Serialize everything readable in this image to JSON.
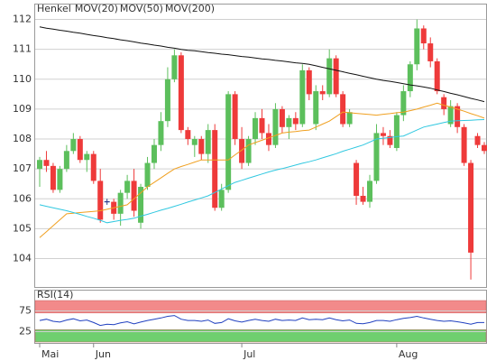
{
  "chart_data": [
    {
      "type": "candlestick",
      "name": "Henkel",
      "name_color": "#e0302a",
      "up_color": "#5cbf5c",
      "down_color": "#ee3a3a",
      "doji_color": "#2a3a8a",
      "categories": [
        "Mai",
        null,
        null,
        null,
        null,
        null,
        null,
        null,
        "Jun",
        null,
        null,
        null,
        null,
        null,
        null,
        null,
        null,
        null,
        null,
        null,
        null,
        null,
        null,
        null,
        null,
        null,
        null,
        null,
        null,
        null,
        "Jul",
        null,
        null,
        null,
        null,
        null,
        null,
        null,
        null,
        null,
        null,
        null,
        null,
        null,
        null,
        null,
        null,
        null,
        null,
        null,
        null,
        null,
        null,
        "Aug",
        null,
        null,
        null,
        null,
        null,
        null,
        null,
        null,
        null,
        null,
        null,
        null,
        null
      ],
      "open": [
        107.0,
        107.3,
        107.1,
        106.3,
        107.0,
        107.6,
        108.0,
        107.3,
        107.5,
        106.6,
        105.9,
        105.9,
        105.5,
        106.2,
        106.6,
        105.2,
        106.4,
        107.2,
        107.8,
        108.6,
        110.0,
        110.8,
        108.3,
        107.8,
        108.0,
        107.5,
        108.3,
        105.7,
        106.3,
        109.5,
        108.0,
        107.2,
        108.0,
        108.7,
        108.2,
        107.8,
        109.0,
        108.4,
        108.7,
        108.5,
        110.3,
        108.5,
        109.6,
        109.5,
        110.7,
        109.5,
        108.5,
        107.2,
        106.1,
        105.9,
        106.6,
        108.2,
        108.1,
        107.7,
        108.8,
        109.6,
        110.5,
        111.7,
        111.2,
        110.6,
        109.4,
        108.5,
        109.1,
        108.4,
        107.2,
        108.1,
        107.8
      ],
      "high": [
        107.4,
        107.6,
        107.2,
        107.1,
        107.8,
        108.2,
        108.1,
        107.6,
        107.6,
        107.0,
        106.0,
        106.0,
        106.3,
        106.8,
        107.0,
        106.5,
        107.4,
        108.0,
        108.9,
        110.4,
        111.0,
        110.9,
        108.4,
        108.1,
        108.1,
        108.5,
        108.5,
        106.5,
        109.6,
        109.6,
        108.4,
        108.1,
        108.9,
        109.0,
        108.5,
        109.2,
        109.1,
        108.8,
        108.9,
        110.5,
        110.4,
        109.8,
        109.8,
        111.0,
        110.8,
        109.6,
        109.0,
        107.3,
        106.4,
        106.8,
        108.5,
        108.4,
        108.3,
        108.9,
        109.8,
        110.6,
        112.0,
        111.8,
        111.4,
        110.7,
        109.5,
        109.3,
        109.2,
        108.5,
        107.3,
        108.2,
        107.9
      ],
      "low": [
        106.4,
        106.9,
        106.2,
        106.2,
        106.9,
        107.5,
        107.2,
        106.9,
        106.5,
        105.2,
        105.8,
        105.3,
        105.1,
        106.0,
        105.4,
        105.0,
        106.3,
        107.0,
        107.6,
        108.4,
        109.9,
        108.2,
        107.8,
        107.4,
        107.3,
        107.2,
        105.6,
        105.6,
        106.2,
        107.8,
        107.0,
        107.1,
        107.8,
        108.0,
        107.6,
        107.7,
        108.2,
        108.0,
        108.3,
        108.4,
        109.3,
        108.3,
        109.3,
        109.4,
        109.4,
        108.4,
        108.4,
        105.8,
        105.8,
        105.7,
        106.5,
        107.8,
        107.7,
        107.6,
        108.6,
        109.4,
        110.3,
        111.0,
        110.4,
        109.5,
        108.8,
        108.4,
        108.2,
        107.1,
        103.3,
        107.7,
        107.5
      ],
      "close": [
        107.3,
        107.1,
        106.3,
        107.0,
        107.6,
        108.0,
        107.3,
        107.5,
        106.6,
        105.3,
        105.9,
        105.5,
        106.2,
        106.6,
        105.6,
        106.4,
        107.2,
        107.8,
        108.6,
        110.0,
        110.8,
        108.3,
        108.0,
        108.0,
        107.5,
        108.3,
        105.7,
        106.3,
        109.5,
        108.0,
        107.2,
        108.0,
        108.7,
        108.2,
        107.8,
        109.0,
        108.4,
        108.7,
        108.5,
        110.3,
        109.5,
        109.6,
        109.5,
        110.7,
        109.5,
        108.5,
        108.9,
        106.1,
        105.9,
        106.6,
        108.2,
        108.1,
        107.8,
        108.8,
        109.6,
        110.5,
        111.7,
        111.2,
        110.6,
        109.6,
        109.0,
        109.1,
        108.4,
        107.2,
        104.2,
        107.8,
        107.6
      ],
      "series": [
        {
          "name": "MOV(20)",
          "color": "#f0a020",
          "values": [
            104.7,
            104.9,
            105.1,
            105.3,
            105.5,
            105.52,
            105.54,
            105.56,
            105.58,
            105.6,
            105.65,
            105.7,
            105.75,
            105.8,
            106.0,
            106.2,
            106.4,
            106.55,
            106.7,
            106.85,
            107.0,
            107.08,
            107.15,
            107.23,
            107.3,
            107.3,
            107.3,
            107.3,
            107.3,
            107.47,
            107.63,
            107.8,
            107.88,
            107.96,
            108.04,
            108.12,
            108.2,
            108.23,
            108.25,
            108.28,
            108.3,
            108.4,
            108.5,
            108.6,
            108.75,
            108.9,
            108.88,
            108.86,
            108.84,
            108.82,
            108.8,
            108.83,
            108.85,
            108.88,
            108.9,
            108.95,
            109.0,
            109.07,
            109.13,
            109.2,
            109.13,
            109.07,
            109.0,
            108.93,
            108.85,
            108.78,
            108.7
          ]
        },
        {
          "name": "MOV(50)",
          "color": "#30c8e0",
          "values": [
            105.8,
            105.75,
            105.7,
            105.65,
            105.6,
            105.54,
            105.48,
            105.41,
            105.35,
            105.28,
            105.2,
            105.24,
            105.28,
            105.31,
            105.35,
            105.42,
            105.48,
            105.55,
            105.62,
            105.68,
            105.75,
            105.82,
            105.89,
            105.96,
            106.03,
            106.1,
            106.21,
            106.33,
            106.44,
            106.55,
            106.62,
            106.69,
            106.76,
            106.83,
            106.9,
            106.96,
            107.01,
            107.07,
            107.13,
            107.19,
            107.24,
            107.3,
            107.37,
            107.44,
            107.51,
            107.59,
            107.66,
            107.73,
            107.8,
            107.9,
            108.0,
            108.03,
            108.05,
            108.08,
            108.1,
            108.2,
            108.3,
            108.4,
            108.45,
            108.5,
            108.55,
            108.6,
            108.61,
            108.62,
            108.63,
            108.64,
            108.65
          ]
        },
        {
          "name": "MOV(200)",
          "color": "#111111",
          "values": [
            111.75,
            111.71,
            111.68,
            111.64,
            111.61,
            111.57,
            111.54,
            111.5,
            111.46,
            111.43,
            111.39,
            111.36,
            111.32,
            111.29,
            111.25,
            111.21,
            111.18,
            111.14,
            111.11,
            111.07,
            111.04,
            111.0,
            110.97,
            110.95,
            110.92,
            110.89,
            110.87,
            110.84,
            110.82,
            110.79,
            110.76,
            110.74,
            110.71,
            110.68,
            110.66,
            110.63,
            110.61,
            110.58,
            110.55,
            110.53,
            110.5,
            110.45,
            110.4,
            110.35,
            110.3,
            110.25,
            110.2,
            110.15,
            110.1,
            110.05,
            110.0,
            109.96,
            109.93,
            109.89,
            109.85,
            109.81,
            109.78,
            109.74,
            109.7,
            109.64,
            109.59,
            109.53,
            109.48,
            109.42,
            109.36,
            109.31,
            109.25
          ]
        }
      ],
      "ylim": [
        103.05,
        112.5
      ],
      "yticks": [
        104,
        105,
        106,
        107,
        108,
        109,
        110,
        111,
        112
      ],
      "grid": true
    },
    {
      "type": "line",
      "title": "RSI(14)",
      "bands": [
        {
          "range": [
            70,
            100
          ],
          "color": "#f28a8a"
        },
        {
          "range": [
            0,
            30
          ],
          "color": "#6fcf6f"
        }
      ],
      "series": [
        {
          "color": "#2040c0",
          "values": [
            52,
            55,
            50,
            48,
            53,
            56,
            51,
            53,
            47,
            40,
            43,
            42,
            46,
            49,
            44,
            48,
            52,
            55,
            58,
            62,
            64,
            55,
            52,
            52,
            50,
            53,
            45,
            47,
            56,
            51,
            48,
            52,
            55,
            52,
            50,
            55,
            52,
            53,
            52,
            58,
            54,
            55,
            54,
            58,
            54,
            51,
            53,
            45,
            44,
            47,
            52,
            52,
            50,
            54,
            57,
            59,
            62,
            58,
            55,
            52,
            50,
            51,
            49,
            46,
            43,
            47,
            47
          ]
        }
      ],
      "ylim": [
        0,
        100
      ],
      "yticks": [
        25,
        75
      ]
    }
  ]
}
